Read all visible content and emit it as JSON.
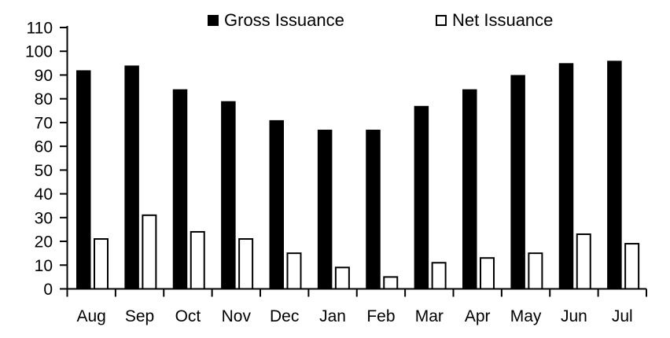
{
  "chart_data": {
    "type": "bar",
    "categories": [
      "Aug",
      "Sep",
      "Oct",
      "Nov",
      "Dec",
      "Jan",
      "Feb",
      "Mar",
      "Apr",
      "May",
      "Jun",
      "Jul"
    ],
    "series": [
      {
        "name": "Gross Issuance",
        "swatch": "filled-black",
        "fill": "#000000",
        "stroke": "#000000",
        "values": [
          92,
          94,
          84,
          79,
          71,
          67,
          67,
          77,
          84,
          90,
          95,
          96
        ]
      },
      {
        "name": "Net Issuance",
        "swatch": "outlined-white",
        "fill": "#ffffff",
        "stroke": "#000000",
        "values": [
          21,
          31,
          24,
          21,
          15,
          9,
          5,
          11,
          13,
          15,
          23,
          19
        ]
      }
    ],
    "title": "",
    "xlabel": "",
    "ylabel": "",
    "ylim": [
      0,
      110
    ],
    "ytick_step": 10,
    "ytick_labels": [
      "0",
      "10",
      "20",
      "30",
      "40",
      "50",
      "60",
      "70",
      "80",
      "90",
      "100",
      "110"
    ],
    "grid": false,
    "legend_position": "top"
  },
  "colors": {
    "background": "#ffffff",
    "text": "#000000",
    "axis": "#000000",
    "gross_bar": "#000000",
    "net_bar_fill": "#ffffff",
    "net_bar_outline": "#000000"
  }
}
